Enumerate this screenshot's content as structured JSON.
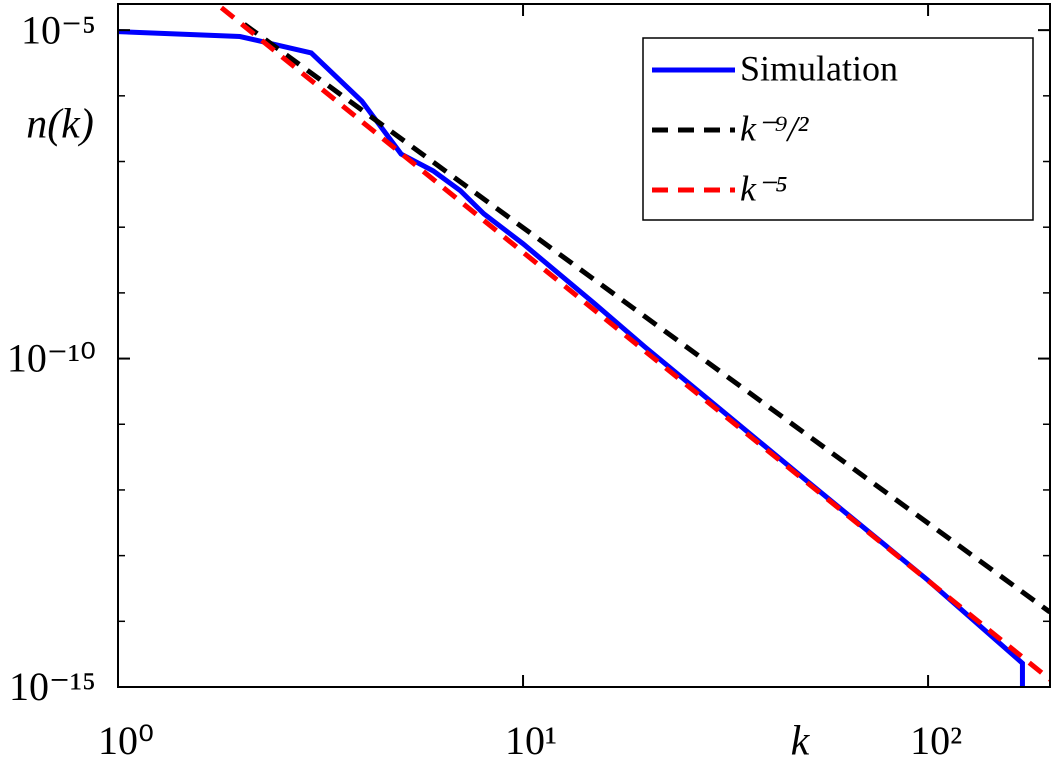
{
  "chart_data": {
    "type": "line",
    "log_x": true,
    "log_y": true,
    "x_label": "k",
    "y_label": "n(k)",
    "xlim": [
      1,
      200
    ],
    "ylim": [
      1e-15,
      2.5e-05
    ],
    "xticks": [
      {
        "value": 1,
        "label": "10⁰"
      },
      {
        "value": 10,
        "label": "10¹"
      },
      {
        "value": 100,
        "label": "10²"
      }
    ],
    "yticks": [
      {
        "value": 1e-15,
        "label": "10⁻¹⁵"
      },
      {
        "value": 1e-10,
        "label": "10⁻¹⁰"
      },
      {
        "value": 1e-05,
        "label": "10⁻⁵"
      }
    ],
    "y_minor_ticks": [
      1e-14,
      1e-13,
      1e-12,
      1e-11,
      1e-09,
      1e-08,
      1e-07,
      1e-06
    ],
    "legend": "upper right",
    "series": [
      {
        "name": "Simulation",
        "color": "#0000ff",
        "dash": false,
        "x": [
          1,
          2,
          3,
          4,
          5,
          6,
          7,
          8,
          10,
          15,
          20,
          30,
          50,
          100,
          171,
          171
        ],
        "values": [
          9.5e-06,
          8e-06,
          4.5e-06,
          8.3e-07,
          1.3e-07,
          7.2e-08,
          3.6e-08,
          1.6e-08,
          5.6e-09,
          6.9e-10,
          1.5e-10,
          1.9e-11,
          1.4e-12,
          4.2e-14,
          2.3e-15,
          1e-15
        ]
      },
      {
        "name": "k⁻⁹/²",
        "color": "#000000",
        "dash": true,
        "x": [
          2.05,
          200
        ],
        "values": [
          1.23e-05,
          1.38e-14
        ]
      },
      {
        "name": "k⁻⁵",
        "color": "#ff0000",
        "dash": true,
        "x": [
          1.8,
          200
        ],
        "values": [
          2.2e-05,
          1.3e-15
        ]
      }
    ]
  }
}
